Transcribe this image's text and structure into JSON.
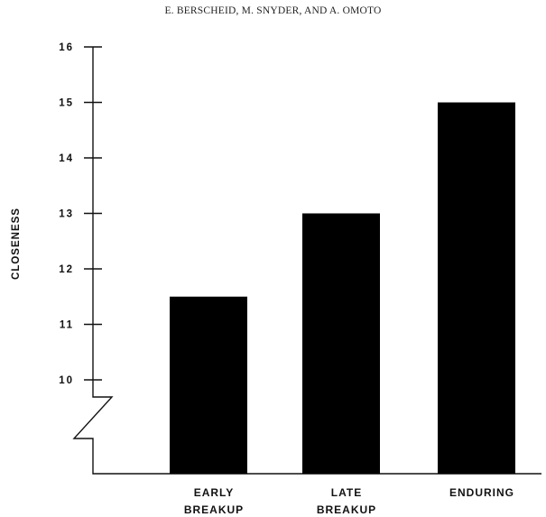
{
  "header": {
    "running_head": "E. BERSCHEID, M. SNYDER, AND A. OMOTO"
  },
  "chart_data": {
    "type": "bar",
    "categories": [
      [
        "EARLY",
        "BREAKUP"
      ],
      [
        "LATE",
        "BREAKUP"
      ],
      [
        "ENDURING"
      ]
    ],
    "values": [
      11.5,
      13,
      15
    ],
    "ylabel": "CLOSENESS",
    "xlabel": "",
    "yticks": [
      10,
      11,
      12,
      13,
      14,
      15,
      16
    ],
    "ylim": [
      10,
      16
    ],
    "axis_break": true,
    "grid": false,
    "bar_color": "#000000"
  }
}
